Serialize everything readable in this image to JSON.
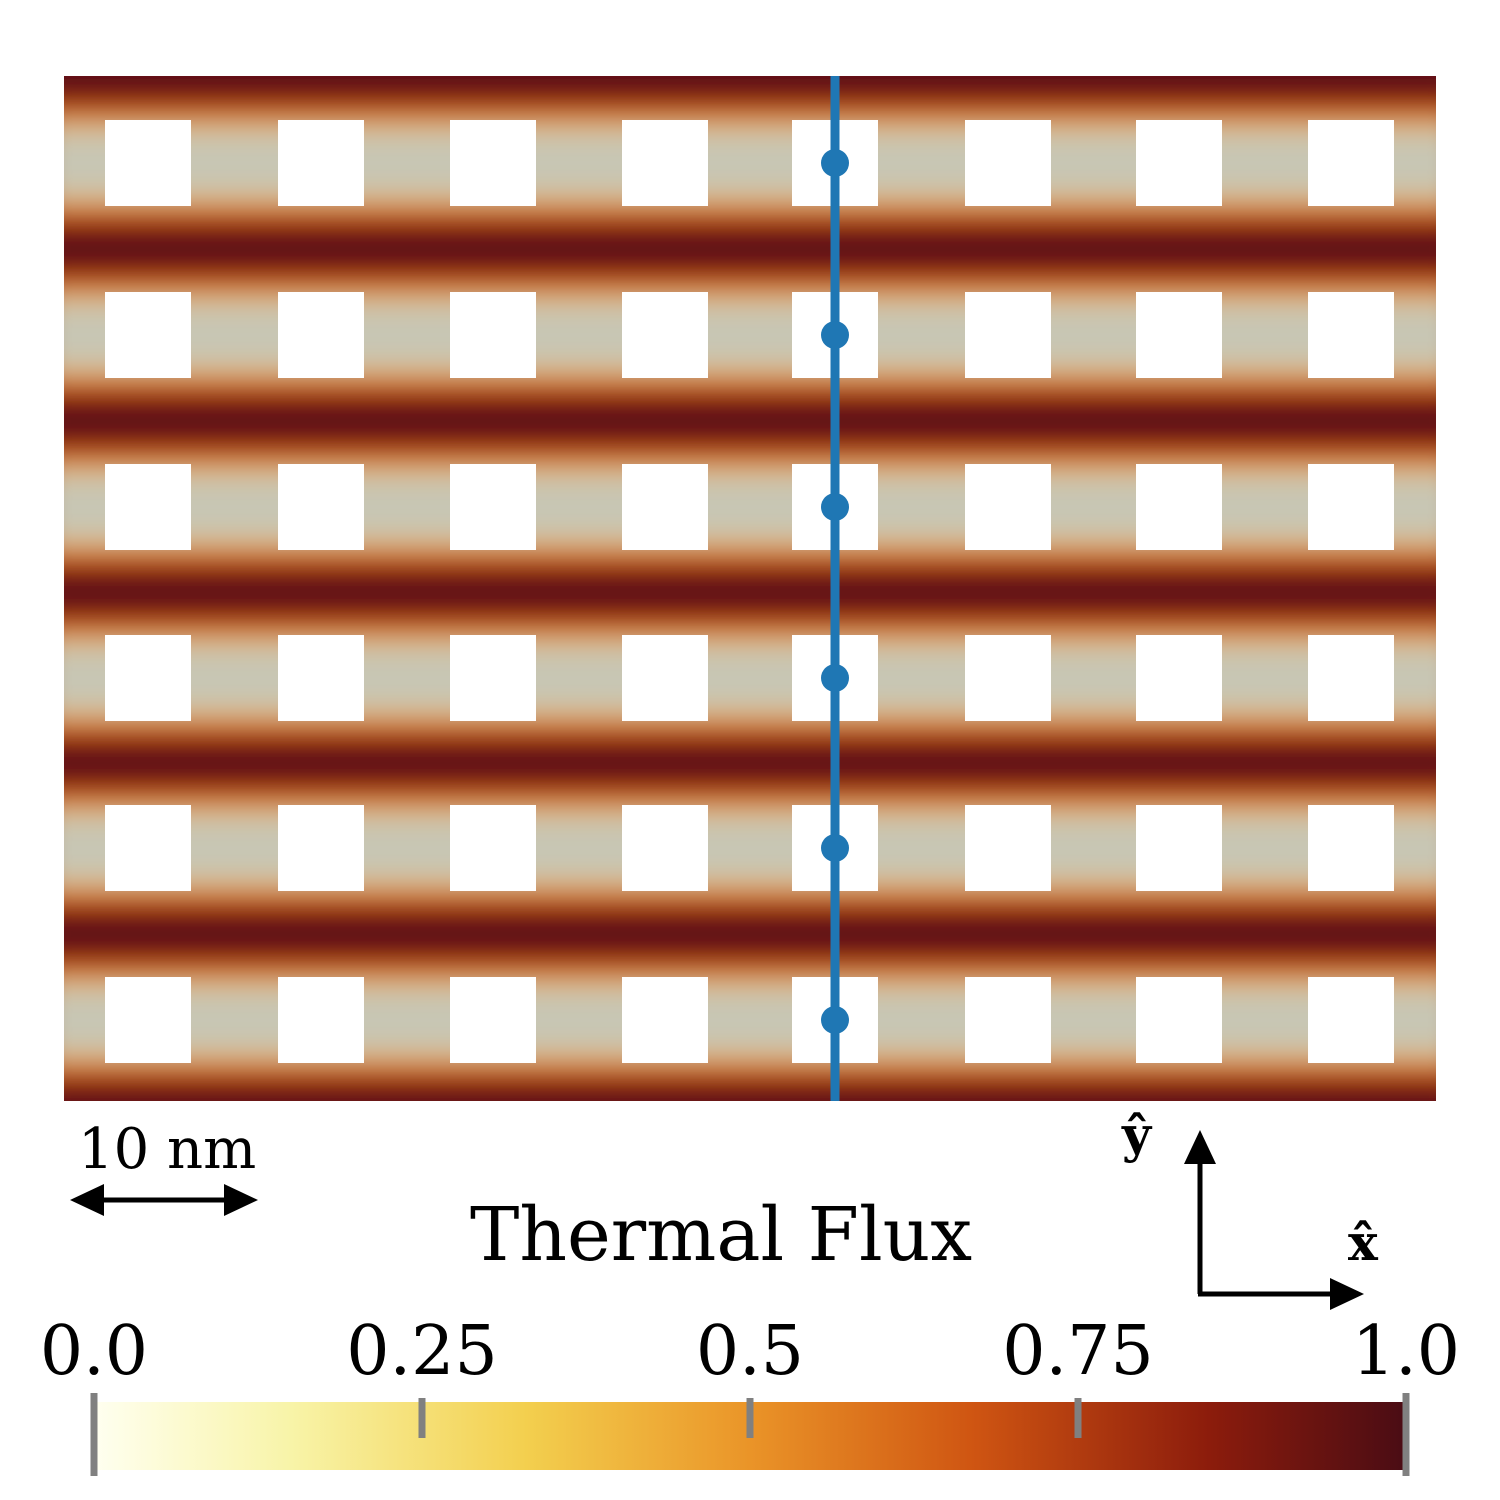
{
  "figure": {
    "scale_bar": {
      "label": "10 nm"
    },
    "axes_glyph": {
      "x_label": "x̂",
      "y_label": "ŷ"
    },
    "colorbar": {
      "title": "Thermal Flux",
      "ticks": [
        {
          "value": 0.0,
          "label": "0.0"
        },
        {
          "value": 0.25,
          "label": "0.25"
        },
        {
          "value": 0.5,
          "label": "0.5"
        },
        {
          "value": 0.75,
          "label": "0.75"
        },
        {
          "value": 1.0,
          "label": "1.0"
        }
      ],
      "colormap": [
        "#fffff0",
        "#f8f4a8",
        "#f3cf4e",
        "#ea9428",
        "#cf5512",
        "#8c1c0c",
        "#4a0c14"
      ]
    },
    "map": {
      "pore_grid": {
        "rows": 6,
        "columns": 8
      },
      "line_color": "#1f77b4",
      "marker_count": 6
    }
  }
}
